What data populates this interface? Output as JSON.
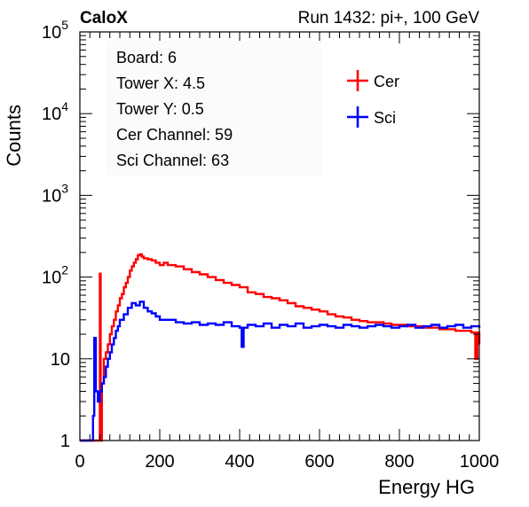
{
  "chart_data": {
    "type": "line",
    "header_left": "CaloX",
    "header_right": "Run 1432: pi+, 100 GeV",
    "xlabel": "Energy HG",
    "ylabel": "Counts",
    "xlim": [
      0,
      1000
    ],
    "ylim": [
      1,
      100000
    ],
    "yscale": "log",
    "grid": false,
    "legend_position": "top-right",
    "x_ticks": [
      {
        "value": 0,
        "label": "0"
      },
      {
        "value": 200,
        "label": "200"
      },
      {
        "value": 400,
        "label": "400"
      },
      {
        "value": 600,
        "label": "600"
      },
      {
        "value": 800,
        "label": "800"
      },
      {
        "value": 1000,
        "label": "1000"
      }
    ],
    "y_ticks": [
      {
        "value": 1,
        "base": "1",
        "exp": ""
      },
      {
        "value": 10,
        "base": "10",
        "exp": ""
      },
      {
        "value": 100,
        "base": "10",
        "exp": "2"
      },
      {
        "value": 1000,
        "base": "10",
        "exp": "3"
      },
      {
        "value": 10000,
        "base": "10",
        "exp": "4"
      },
      {
        "value": 100000,
        "base": "10",
        "exp": "5"
      }
    ],
    "info_lines": [
      "Board: 6",
      "Tower X: 4.5",
      "Tower Y: 0.5",
      "Cer Channel: 59",
      "Sci Channel: 63"
    ],
    "series": [
      {
        "name": "Cer",
        "color": "#ff0000",
        "x": [
          0,
          20,
          40,
          45,
          48,
          50,
          52,
          55,
          58,
          60,
          65,
          70,
          75,
          80,
          85,
          90,
          95,
          100,
          105,
          110,
          115,
          120,
          125,
          130,
          135,
          140,
          145,
          150,
          155,
          160,
          170,
          180,
          190,
          200,
          210,
          220,
          240,
          260,
          280,
          300,
          320,
          340,
          360,
          380,
          400,
          420,
          440,
          460,
          480,
          500,
          520,
          540,
          560,
          580,
          600,
          620,
          640,
          660,
          680,
          700,
          720,
          740,
          760,
          780,
          800,
          820,
          840,
          860,
          880,
          900,
          920,
          940,
          960,
          980,
          990,
          995,
          1000
        ],
        "y": [
          1,
          1,
          1,
          1,
          1,
          110,
          1,
          5,
          5,
          10,
          12,
          15,
          20,
          25,
          30,
          38,
          45,
          55,
          62,
          75,
          85,
          100,
          120,
          135,
          150,
          165,
          185,
          190,
          178,
          170,
          165,
          160,
          150,
          140,
          150,
          140,
          135,
          125,
          115,
          108,
          100,
          92,
          85,
          80,
          75,
          65,
          62,
          57,
          55,
          52,
          48,
          44,
          42,
          40,
          38,
          35,
          33,
          32,
          30,
          29,
          28,
          28,
          27,
          26,
          26,
          25,
          25,
          24,
          24,
          23,
          23,
          22,
          22,
          21,
          10,
          21,
          15
        ]
      },
      {
        "name": "Sci",
        "color": "#0000ff",
        "x": [
          0,
          20,
          30,
          33,
          36,
          40,
          45,
          50,
          55,
          60,
          65,
          70,
          75,
          80,
          85,
          90,
          95,
          100,
          110,
          120,
          130,
          140,
          150,
          160,
          170,
          180,
          190,
          200,
          220,
          240,
          260,
          280,
          300,
          320,
          340,
          360,
          380,
          400,
          405,
          410,
          420,
          440,
          460,
          480,
          500,
          520,
          540,
          560,
          580,
          600,
          620,
          640,
          660,
          680,
          700,
          720,
          740,
          760,
          780,
          800,
          820,
          840,
          860,
          880,
          900,
          920,
          940,
          960,
          980,
          1000
        ],
        "y": [
          1,
          1,
          1,
          2,
          18,
          4,
          3,
          4,
          5,
          6,
          8,
          10,
          12,
          15,
          18,
          22,
          25,
          30,
          35,
          42,
          48,
          45,
          50,
          42,
          38,
          36,
          33,
          30,
          30,
          28,
          27,
          28,
          26,
          27,
          26,
          28,
          25,
          24,
          14,
          24,
          26,
          25,
          27,
          24,
          26,
          25,
          27,
          24,
          25,
          26,
          25,
          24,
          26,
          25,
          24,
          25,
          26,
          25,
          24,
          25,
          26,
          24,
          25,
          26,
          24,
          25,
          26,
          24,
          25,
          24
        ]
      }
    ]
  }
}
